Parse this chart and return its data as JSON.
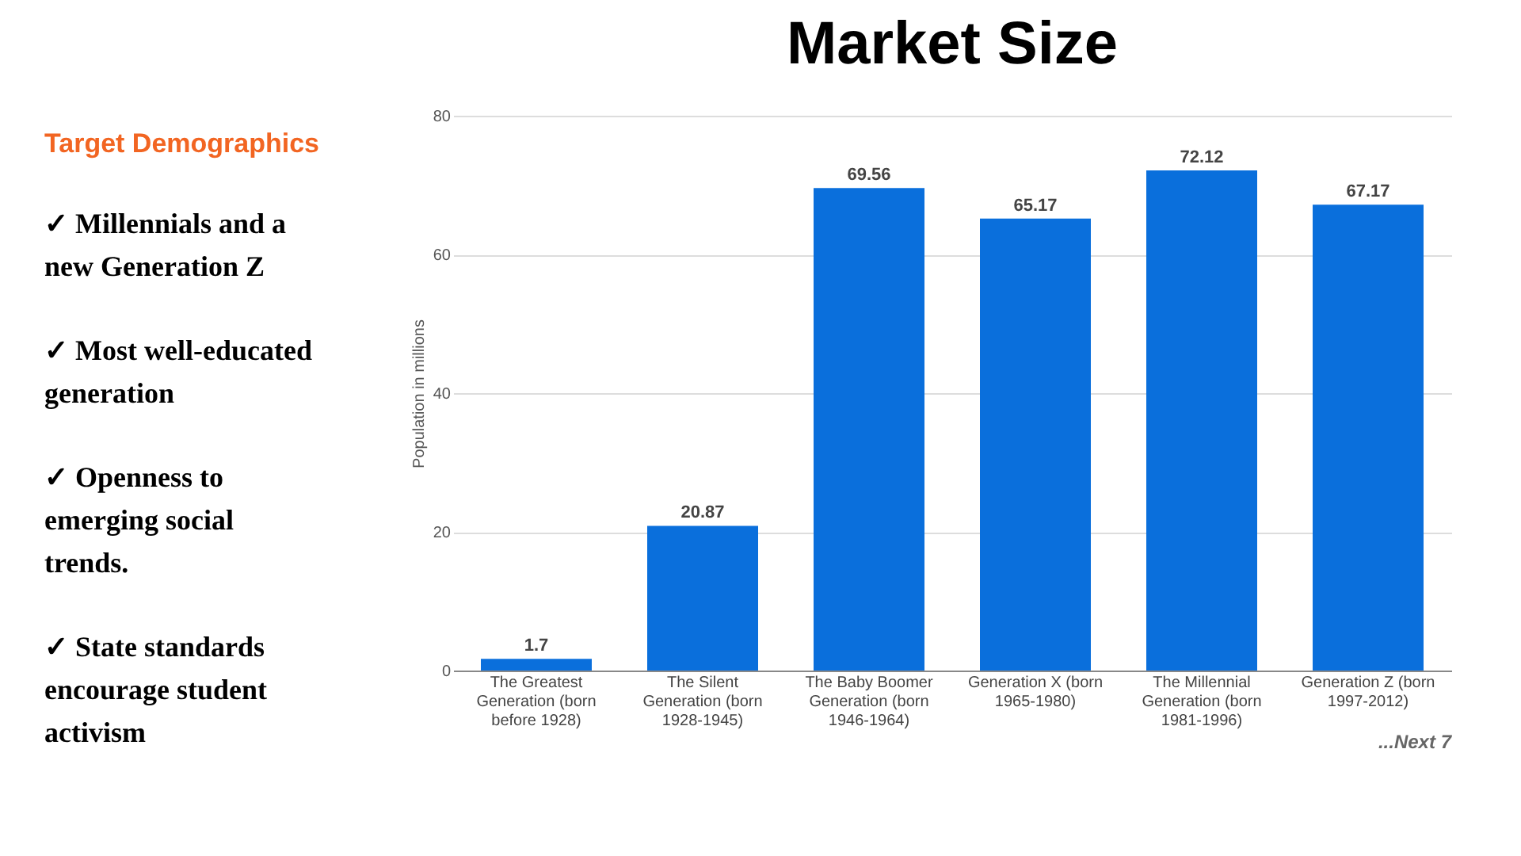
{
  "chart_data": [
    {
      "type": "other",
      "title": "Target Demographics",
      "annotations": [
        "✓ Millennials and a new Generation Z",
        "✓ Most well-educated generation",
        "✓ Openness to emerging social trends.",
        "✓ State standards encourage student activism"
      ]
    },
    {
      "type": "bar",
      "title": "Market Size",
      "ylabel": "Population in millions",
      "categories": [
        "The Greatest Generation (born before 1928)",
        "The Silent Generation (born 1928-1945)",
        "The Baby Boomer Generation (born 1946-1964)",
        "Generation X (born 1965-1980)",
        "The Millennial Generation (born 1981-1996)",
        "Generation Z (born 1997-2012)"
      ],
      "values": [
        1.7,
        20.87,
        69.56,
        65.17,
        72.12,
        67.17
      ],
      "color": "#0a6fdc",
      "ylim": [
        0,
        80
      ],
      "yticks": [
        0,
        20,
        40,
        60,
        80
      ],
      "grid": "y",
      "data_labels": true,
      "annotations": [
        "...Next 7"
      ]
    }
  ]
}
